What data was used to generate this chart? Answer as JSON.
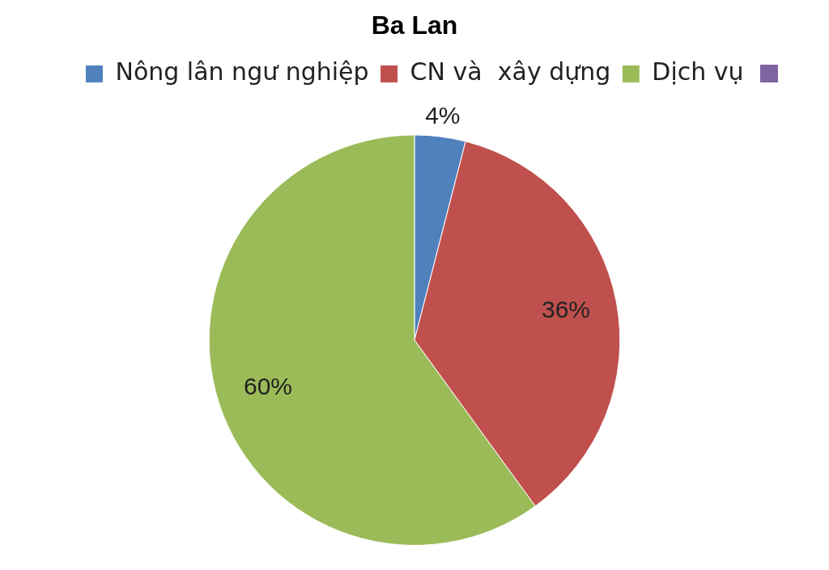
{
  "chart_data": {
    "type": "pie",
    "title": "Ba Lan",
    "categories": [
      "Nông lân ngư nghiệp",
      "CN và  xây dựng",
      "Dịch vụ"
    ],
    "values": [
      4,
      36,
      60
    ],
    "colors": [
      "#4f81bd",
      "#c0504d",
      "#9bbb59"
    ],
    "value_labels": [
      "4%",
      "36%",
      "60%"
    ],
    "legend": "top"
  }
}
